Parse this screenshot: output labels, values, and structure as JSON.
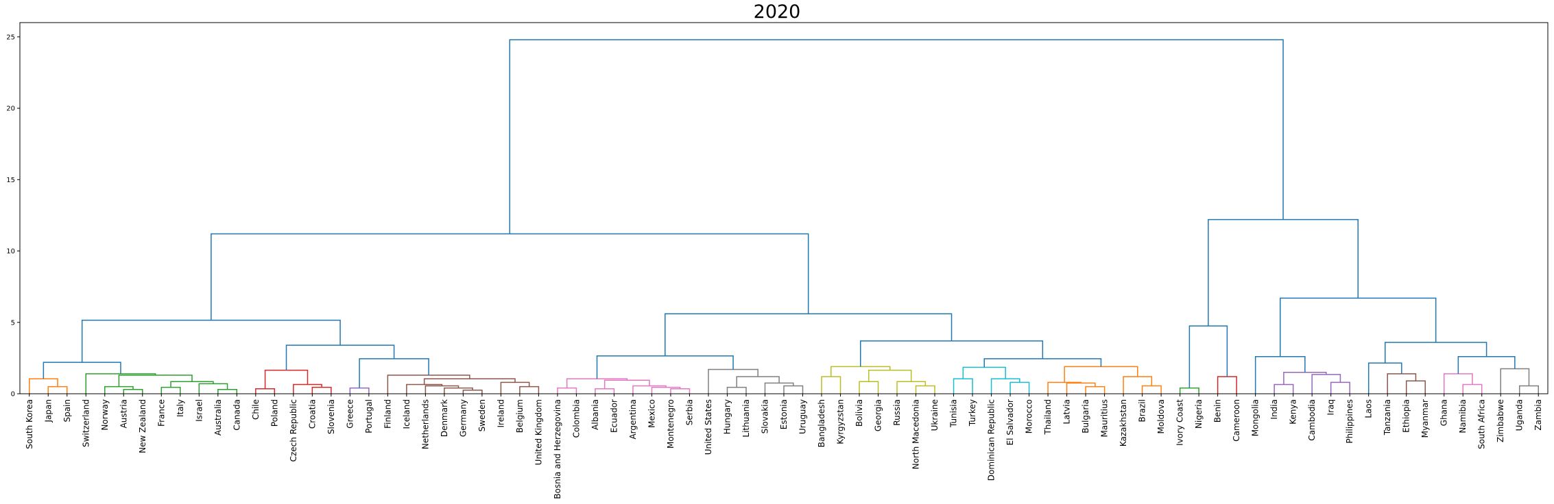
{
  "chart_data": {
    "type": "dendrogram",
    "title": "2020",
    "xlabel": "",
    "ylabel": "",
    "ylim": [
      0,
      26
    ],
    "yticks": [
      0,
      5,
      10,
      15,
      20,
      25
    ],
    "grid": false,
    "leaves": [
      "South Korea",
      "Japan",
      "Spain",
      "Switzerland",
      "Norway",
      "Austria",
      "New Zealand",
      "France",
      "Italy",
      "Israel",
      "Australia",
      "Canada",
      "Chile",
      "Poland",
      "Czech Republic",
      "Croatia",
      "Slovenia",
      "Greece",
      "Portugal",
      "Finland",
      "Iceland",
      "Netherlands",
      "Denmark",
      "Germany",
      "Sweden",
      "Ireland",
      "Belgium",
      "United Kingdom",
      "Bosnia and Herzegovina",
      "Colombia",
      "Albania",
      "Ecuador",
      "Argentina",
      "Mexico",
      "Montenegro",
      "Serbia",
      "United States",
      "Hungary",
      "Lithuania",
      "Slovakia",
      "Estonia",
      "Uruguay",
      "Bangladesh",
      "Kyrgyzstan",
      "Bolivia",
      "Georgia",
      "Russia",
      "North Macedonia",
      "Ukraine",
      "Tunisia",
      "Turkey",
      "Dominican Republic",
      "El Salvador",
      "Morocco",
      "Thailand",
      "Latvia",
      "Bulgaria",
      "Mauritius",
      "Kazakhstan",
      "Brazil",
      "Moldova",
      "Ivory Coast",
      "Nigeria",
      "Benin",
      "Cameroon",
      "Mongolia",
      "India",
      "Kenya",
      "Cambodia",
      "Iraq",
      "Philippines",
      "Laos",
      "Tanzania",
      "Ethiopia",
      "Myanmar",
      "Ghana",
      "Namibia",
      "South Africa",
      "Zimbabwe",
      "Uganda",
      "Zambia"
    ],
    "colors": {
      "above_threshold": "#1f77b4",
      "orange": "#ff7f0e",
      "green": "#2ca02c",
      "red": "#d62728",
      "purple": "#9467bd",
      "brown": "#8c564b",
      "pink": "#e377c2",
      "gray": "#7f7f7f",
      "olive": "#bcbd22",
      "cyan": "#17becf"
    },
    "links": [
      {
        "a": "L:1",
        "b": "L:2",
        "h": 0.5,
        "color": "orange"
      },
      {
        "a": "L:0",
        "b": "C:0",
        "h": 1.05,
        "color": "orange"
      },
      {
        "a": "L:5",
        "b": "L:6",
        "h": 0.3,
        "color": "green"
      },
      {
        "a": "L:4",
        "b": "C:2",
        "h": 0.5,
        "color": "green"
      },
      {
        "a": "L:7",
        "b": "L:8",
        "h": 0.45,
        "color": "green"
      },
      {
        "a": "L:10",
        "b": "L:11",
        "h": 0.3,
        "color": "green"
      },
      {
        "a": "L:9",
        "b": "C:5",
        "h": 0.7,
        "color": "green"
      },
      {
        "a": "C:4",
        "b": "C:6",
        "h": 0.85,
        "color": "green"
      },
      {
        "a": "C:3",
        "b": "C:7",
        "h": 1.3,
        "color": "green"
      },
      {
        "a": "L:3",
        "b": "C:8",
        "h": 1.4,
        "color": "green"
      },
      {
        "a": "C:1",
        "b": "C:9",
        "h": 2.2,
        "color": "above_threshold"
      },
      {
        "a": "L:15",
        "b": "L:16",
        "h": 0.45,
        "color": "red"
      },
      {
        "a": "L:14",
        "b": "C:11",
        "h": 0.65,
        "color": "red"
      },
      {
        "a": "L:12",
        "b": "L:13",
        "h": 0.35,
        "color": "red"
      },
      {
        "a": "C:13",
        "b": "C:12",
        "h": 1.65,
        "color": "red"
      },
      {
        "a": "L:17",
        "b": "L:18",
        "h": 0.4,
        "color": "purple"
      },
      {
        "a": "L:23",
        "b": "L:24",
        "h": 0.25,
        "color": "brown"
      },
      {
        "a": "L:22",
        "b": "C:16",
        "h": 0.4,
        "color": "brown"
      },
      {
        "a": "L:21",
        "b": "C:17",
        "h": 0.55,
        "color": "brown"
      },
      {
        "a": "L:20",
        "b": "C:18",
        "h": 0.65,
        "color": "brown"
      },
      {
        "a": "L:26",
        "b": "L:27",
        "h": 0.5,
        "color": "brown"
      },
      {
        "a": "L:25",
        "b": "C:20",
        "h": 0.8,
        "color": "brown"
      },
      {
        "a": "C:19",
        "b": "C:21",
        "h": 1.05,
        "color": "brown"
      },
      {
        "a": "L:19",
        "b": "C:22",
        "h": 1.3,
        "color": "brown"
      },
      {
        "a": "C:15",
        "b": "C:23",
        "h": 2.45,
        "color": "above_threshold"
      },
      {
        "a": "C:14",
        "b": "C:24",
        "h": 3.4,
        "color": "above_threshold"
      },
      {
        "a": "C:10",
        "b": "C:25",
        "h": 5.15,
        "color": "above_threshold"
      },
      {
        "a": "L:28",
        "b": "L:29",
        "h": 0.4,
        "color": "pink"
      },
      {
        "a": "L:30",
        "b": "L:31",
        "h": 0.35,
        "color": "pink"
      },
      {
        "a": "L:34",
        "b": "L:35",
        "h": 0.35,
        "color": "pink"
      },
      {
        "a": "L:33",
        "b": "C:29",
        "h": 0.45,
        "color": "pink"
      },
      {
        "a": "L:32",
        "b": "C:30",
        "h": 0.55,
        "color": "pink"
      },
      {
        "a": "C:28",
        "b": "C:31",
        "h": 0.95,
        "color": "pink"
      },
      {
        "a": "C:27",
        "b": "C:32",
        "h": 1.05,
        "color": "pink"
      },
      {
        "a": "L:40",
        "b": "L:41",
        "h": 0.55,
        "color": "gray"
      },
      {
        "a": "L:39",
        "b": "C:34",
        "h": 0.75,
        "color": "gray"
      },
      {
        "a": "L:37",
        "b": "L:38",
        "h": 0.45,
        "color": "gray"
      },
      {
        "a": "C:36",
        "b": "C:35",
        "h": 1.2,
        "color": "gray"
      },
      {
        "a": "L:36",
        "b": "C:37",
        "h": 1.7,
        "color": "gray"
      },
      {
        "a": "C:33",
        "b": "C:38",
        "h": 2.65,
        "color": "above_threshold"
      },
      {
        "a": "L:42",
        "b": "L:43",
        "h": 1.2,
        "color": "olive"
      },
      {
        "a": "L:44",
        "b": "L:45",
        "h": 0.85,
        "color": "olive"
      },
      {
        "a": "L:47",
        "b": "L:48",
        "h": 0.55,
        "color": "olive"
      },
      {
        "a": "L:46",
        "b": "C:42",
        "h": 0.85,
        "color": "olive"
      },
      {
        "a": "C:41",
        "b": "C:43",
        "h": 1.65,
        "color": "olive"
      },
      {
        "a": "C:40",
        "b": "C:44",
        "h": 1.9,
        "color": "olive"
      },
      {
        "a": "L:49",
        "b": "L:50",
        "h": 1.05,
        "color": "cyan"
      },
      {
        "a": "L:52",
        "b": "L:53",
        "h": 0.8,
        "color": "cyan"
      },
      {
        "a": "L:51",
        "b": "C:47",
        "h": 1.05,
        "color": "cyan"
      },
      {
        "a": "C:46",
        "b": "C:48",
        "h": 1.85,
        "color": "cyan"
      },
      {
        "a": "L:56",
        "b": "L:57",
        "h": 0.5,
        "color": "orange"
      },
      {
        "a": "L:55",
        "b": "C:50",
        "h": 0.75,
        "color": "orange"
      },
      {
        "a": "L:54",
        "b": "C:51",
        "h": 0.8,
        "color": "orange"
      },
      {
        "a": "L:59",
        "b": "L:60",
        "h": 0.55,
        "color": "orange"
      },
      {
        "a": "L:58",
        "b": "C:53",
        "h": 1.2,
        "color": "orange"
      },
      {
        "a": "C:52",
        "b": "C:54",
        "h": 1.9,
        "color": "orange"
      },
      {
        "a": "C:49",
        "b": "C:55",
        "h": 2.45,
        "color": "above_threshold"
      },
      {
        "a": "C:45",
        "b": "C:56",
        "h": 3.7,
        "color": "above_threshold"
      },
      {
        "a": "C:39",
        "b": "C:57",
        "h": 5.6,
        "color": "above_threshold"
      },
      {
        "a": "C:26",
        "b": "C:58",
        "h": 11.2,
        "color": "above_threshold"
      },
      {
        "a": "L:61",
        "b": "L:62",
        "h": 0.4,
        "color": "green"
      },
      {
        "a": "L:63",
        "b": "L:64",
        "h": 1.2,
        "color": "red"
      },
      {
        "a": "C:60",
        "b": "C:61",
        "h": 4.75,
        "color": "above_threshold"
      },
      {
        "a": "L:66",
        "b": "L:67",
        "h": 0.65,
        "color": "purple"
      },
      {
        "a": "L:69",
        "b": "L:70",
        "h": 0.8,
        "color": "purple"
      },
      {
        "a": "L:68",
        "b": "C:64",
        "h": 1.35,
        "color": "purple"
      },
      {
        "a": "C:63",
        "b": "C:65",
        "h": 1.5,
        "color": "purple"
      },
      {
        "a": "L:65",
        "b": "C:66",
        "h": 2.6,
        "color": "above_threshold"
      },
      {
        "a": "L:73",
        "b": "L:74",
        "h": 0.9,
        "color": "brown"
      },
      {
        "a": "L:72",
        "b": "C:68",
        "h": 1.4,
        "color": "brown"
      },
      {
        "a": "L:71",
        "b": "C:69",
        "h": 2.15,
        "color": "above_threshold"
      },
      {
        "a": "L:76",
        "b": "L:77",
        "h": 0.65,
        "color": "pink"
      },
      {
        "a": "L:75",
        "b": "C:71",
        "h": 1.4,
        "color": "pink"
      },
      {
        "a": "L:79",
        "b": "L:80",
        "h": 0.55,
        "color": "gray"
      },
      {
        "a": "L:78",
        "b": "C:73",
        "h": 1.75,
        "color": "gray"
      },
      {
        "a": "C:72",
        "b": "C:74",
        "h": 2.6,
        "color": "above_threshold"
      },
      {
        "a": "C:70",
        "b": "C:75",
        "h": 3.6,
        "color": "above_threshold"
      },
      {
        "a": "C:67",
        "b": "C:76",
        "h": 6.7,
        "color": "above_threshold"
      },
      {
        "a": "C:62",
        "b": "C:77",
        "h": 12.2,
        "color": "above_threshold"
      },
      {
        "a": "C:59",
        "b": "C:78",
        "h": 24.8,
        "color": "above_threshold"
      }
    ]
  }
}
